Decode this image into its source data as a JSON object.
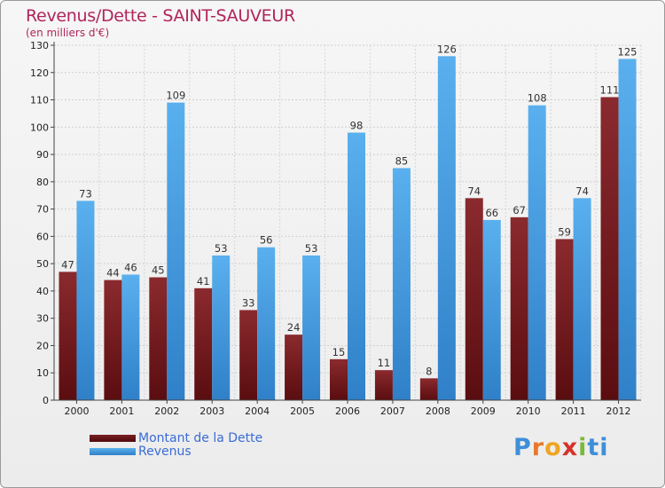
{
  "title": "Revenus/Dette - SAINT-SAUVEUR",
  "subtitle": "(en milliers d'€)",
  "colors": {
    "title": "#b0255a",
    "debt": "#7a1f22",
    "revenue": "#4aa3e6",
    "legend_text": "#3a6bd6"
  },
  "legend": [
    {
      "label": "Montant de la Dette",
      "color": "#6b1012"
    },
    {
      "label": "Revenus",
      "color": "#4aa3e6"
    }
  ],
  "logo": {
    "text": "Proxiti",
    "letters": [
      "P",
      "r",
      "o",
      "x",
      "i",
      "ti"
    ]
  },
  "chart_data": {
    "type": "bar",
    "title": "Revenus/Dette - SAINT-SAUVEUR",
    "subtitle": "(en milliers d'€)",
    "xlabel": "",
    "ylabel": "",
    "ylim": [
      0,
      130
    ],
    "yticks": [
      0,
      10,
      20,
      30,
      40,
      50,
      60,
      70,
      80,
      90,
      100,
      110,
      120,
      130
    ],
    "grid": true,
    "legend_position": "bottom-left",
    "categories": [
      "2000",
      "2001",
      "2002",
      "2003",
      "2004",
      "2005",
      "2006",
      "2007",
      "2008",
      "2009",
      "2010",
      "2011",
      "2012"
    ],
    "series": [
      {
        "name": "Montant de la Dette",
        "values": [
          47,
          44,
          45,
          41,
          33,
          24,
          15,
          11,
          8,
          74,
          67,
          59,
          111
        ]
      },
      {
        "name": "Revenus",
        "values": [
          73,
          46,
          109,
          53,
          56,
          53,
          98,
          85,
          126,
          66,
          108,
          74,
          125
        ]
      }
    ]
  }
}
